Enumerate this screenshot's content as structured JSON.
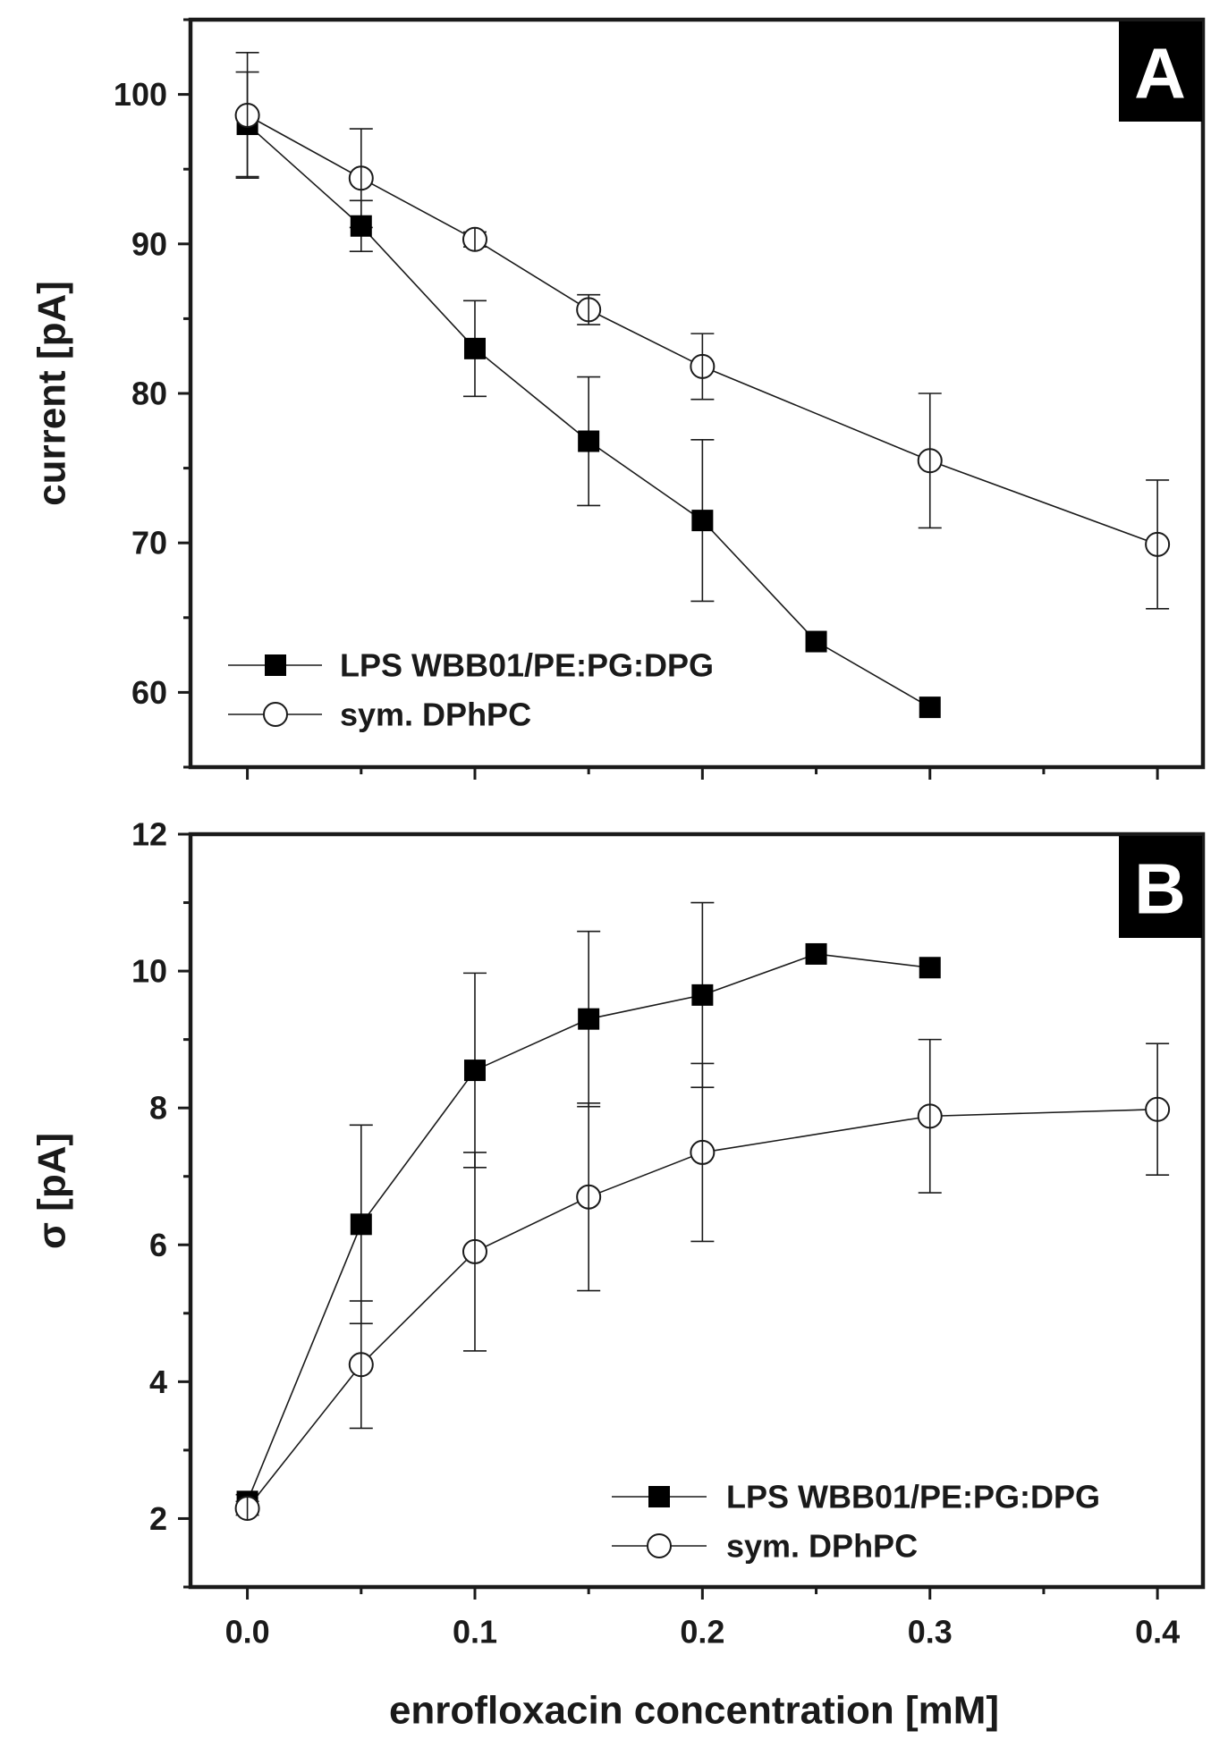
{
  "chart_data": [
    {
      "panel": "A",
      "type": "line",
      "ylabel": "current [pA]",
      "xlabel": "",
      "xlim": [
        -0.025,
        0.42
      ],
      "ylim": [
        55,
        105
      ],
      "xticks": [
        0.0,
        0.1,
        0.2,
        0.3,
        0.4
      ],
      "yticks": [
        60,
        70,
        80,
        90,
        100
      ],
      "yticks_labels": [
        "60",
        "70",
        "80",
        "90",
        "100"
      ],
      "legend_position": "bottom-left",
      "series": [
        {
          "name": "LPS WBB01/PE:PG:DPG",
          "marker": "filled-square",
          "x": [
            0.0,
            0.05,
            0.1,
            0.15,
            0.2,
            0.25,
            0.3
          ],
          "y": [
            98.0,
            91.2,
            83.0,
            76.8,
            71.5,
            63.4,
            59.0
          ],
          "yerr": [
            3.5,
            1.7,
            3.2,
            4.3,
            5.4,
            0,
            0
          ]
        },
        {
          "name": "sym. DPhPC",
          "marker": "open-circle",
          "x": [
            0.0,
            0.05,
            0.1,
            0.15,
            0.2,
            0.3,
            0.4
          ],
          "y": [
            98.6,
            94.4,
            90.3,
            85.6,
            81.8,
            75.5,
            69.9
          ],
          "yerr": [
            4.2,
            3.3,
            0.5,
            1.0,
            2.2,
            4.5,
            4.3
          ]
        }
      ]
    },
    {
      "panel": "B",
      "type": "line",
      "ylabel": "σ [pA]",
      "xlabel": "enrofloxacin concentration [mM]",
      "xlim": [
        -0.025,
        0.42
      ],
      "ylim": [
        1,
        12
      ],
      "xticks": [
        0.0,
        0.1,
        0.2,
        0.3,
        0.4
      ],
      "xticks_labels": [
        "0.0",
        "0.1",
        "0.2",
        "0.3",
        "0.4"
      ],
      "yticks": [
        2,
        4,
        6,
        8,
        10,
        12
      ],
      "yticks_labels": [
        "2",
        "4",
        "6",
        "8",
        "10",
        "12"
      ],
      "legend_position": "bottom-right",
      "series": [
        {
          "name": "LPS WBB01/PE:PG:DPG",
          "marker": "filled-square",
          "x": [
            0.0,
            0.05,
            0.1,
            0.15,
            0.2,
            0.25,
            0.3
          ],
          "y": [
            2.25,
            6.3,
            8.55,
            9.3,
            9.65,
            10.25,
            10.05
          ],
          "yerr": [
            0.1,
            1.45,
            1.42,
            1.28,
            1.35,
            0,
            0
          ]
        },
        {
          "name": "sym. DPhPC",
          "marker": "open-circle",
          "x": [
            0.0,
            0.05,
            0.1,
            0.15,
            0.2,
            0.3,
            0.4
          ],
          "y": [
            2.15,
            4.25,
            5.9,
            6.7,
            7.35,
            7.88,
            7.98
          ],
          "yerr": [
            0.1,
            0.93,
            1.45,
            1.37,
            1.3,
            1.12,
            0.96
          ]
        }
      ]
    }
  ],
  "colors": {
    "ink": "#1a1a1a",
    "background": "#ffffff",
    "panel_label_bg": "#000000"
  }
}
